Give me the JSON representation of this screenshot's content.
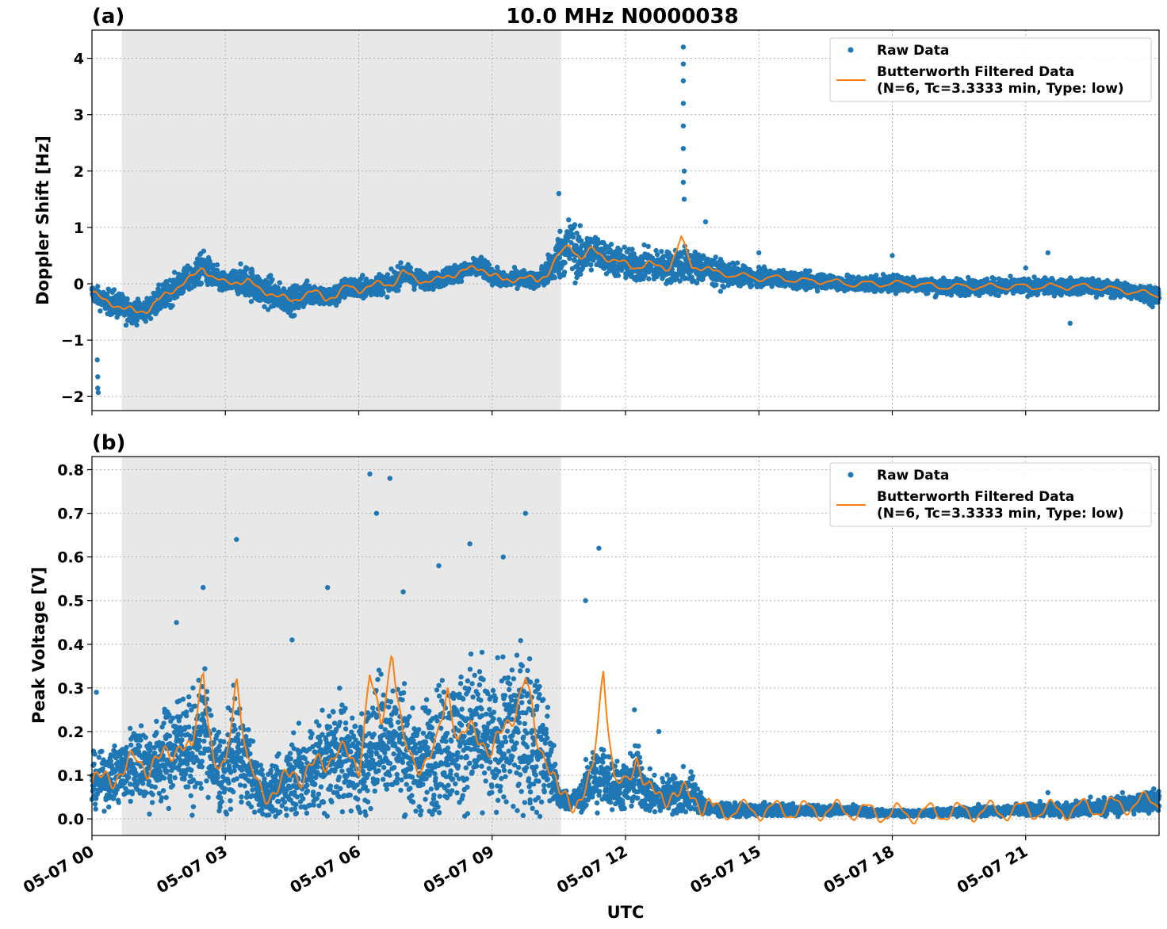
{
  "title": "10.0 MHz N0000038",
  "xlabel": "UTC",
  "x_tick_labels": [
    "05-07 00",
    "05-07 03",
    "05-07 06",
    "05-07 09",
    "05-07 12",
    "05-07 15",
    "05-07 18",
    "05-07 21"
  ],
  "colors": {
    "raw": "#1f77b4",
    "filtered": "#ff7f0e",
    "shade": "#e8e8e8",
    "grid": "#b0b0b0"
  },
  "legend": {
    "raw_label": "Raw Data",
    "filtered_label_line1": "Butterworth Filtered Data",
    "filtered_label_line2": "(N=6, Tc=3.3333 min, Type: low)",
    "placement": "top-right"
  },
  "chart_data": [
    {
      "type": "scatter",
      "panel_label": "(a)",
      "ylabel": "Doppler Shift [Hz]",
      "xlim_hours": [
        0,
        24
      ],
      "ylim": [
        -2.25,
        4.5
      ],
      "y_ticks": [
        -2,
        -1,
        0,
        1,
        2,
        3,
        4
      ],
      "y_tick_labels": [
        "−2",
        "−1",
        "0",
        "1",
        "2",
        "3",
        "4"
      ],
      "grid": true,
      "shaded_interval_hours": [
        0.67,
        10.55
      ],
      "series": [
        {
          "name": "Raw Data",
          "x_hours": [
            0,
            0.25,
            0.5,
            0.75,
            1.0,
            1.25,
            1.5,
            1.75,
            2.0,
            2.25,
            2.5,
            2.75,
            3.0,
            3.25,
            3.5,
            3.75,
            4.0,
            4.25,
            4.5,
            4.75,
            5.0,
            5.25,
            5.5,
            5.75,
            6.0,
            6.25,
            6.5,
            6.75,
            7.0,
            7.25,
            7.5,
            7.75,
            8.0,
            8.25,
            8.5,
            8.75,
            9.0,
            9.25,
            9.5,
            9.75,
            10.0,
            10.25,
            10.5,
            10.75,
            11.0,
            11.25,
            11.5,
            11.75,
            12.0,
            12.25,
            12.5,
            12.75,
            13.0,
            13.25,
            13.5,
            13.75,
            14.0,
            14.5,
            15.0,
            15.5,
            16.0,
            16.5,
            17.0,
            17.5,
            18.0,
            18.5,
            19.0,
            19.5,
            20.0,
            20.5,
            21.0,
            21.5,
            22.0,
            22.5,
            23.0,
            23.5,
            24.0
          ],
          "y": [
            -0.15,
            -0.3,
            -0.35,
            -0.45,
            -0.5,
            -0.45,
            -0.3,
            -0.15,
            0.0,
            0.1,
            0.3,
            0.1,
            0.0,
            0.05,
            0.05,
            -0.1,
            -0.15,
            -0.25,
            -0.3,
            -0.2,
            -0.15,
            -0.25,
            -0.2,
            -0.05,
            -0.1,
            -0.05,
            0.0,
            0.0,
            0.2,
            0.1,
            0.05,
            0.05,
            0.15,
            0.2,
            0.25,
            0.3,
            0.15,
            0.05,
            0.1,
            0.1,
            0.05,
            0.2,
            0.5,
            0.7,
            0.45,
            0.6,
            0.5,
            0.4,
            0.35,
            0.3,
            0.35,
            0.3,
            0.3,
            0.35,
            0.3,
            0.3,
            0.2,
            0.15,
            0.1,
            0.1,
            0.05,
            0.05,
            0.0,
            0.0,
            0.0,
            0.0,
            -0.05,
            -0.05,
            -0.05,
            -0.05,
            -0.05,
            -0.05,
            -0.05,
            -0.05,
            -0.1,
            -0.15,
            -0.2
          ],
          "spread": [
            0.15,
            0.2,
            0.25,
            0.25,
            0.2,
            0.2,
            0.25,
            0.25,
            0.25,
            0.25,
            0.3,
            0.25,
            0.2,
            0.25,
            0.3,
            0.3,
            0.3,
            0.25,
            0.25,
            0.25,
            0.2,
            0.2,
            0.2,
            0.2,
            0.2,
            0.2,
            0.2,
            0.2,
            0.2,
            0.2,
            0.15,
            0.15,
            0.2,
            0.15,
            0.15,
            0.2,
            0.15,
            0.15,
            0.15,
            0.15,
            0.15,
            0.3,
            0.45,
            0.55,
            0.45,
            0.35,
            0.3,
            0.3,
            0.3,
            0.3,
            0.3,
            0.3,
            0.3,
            0.35,
            0.3,
            0.3,
            0.25,
            0.2,
            0.15,
            0.15,
            0.15,
            0.15,
            0.15,
            0.15,
            0.15,
            0.15,
            0.15,
            0.15,
            0.15,
            0.15,
            0.15,
            0.15,
            0.15,
            0.15,
            0.15,
            0.15,
            0.2
          ],
          "outliers": [
            [
              0.12,
              -1.35
            ],
            [
              0.13,
              -1.65
            ],
            [
              0.13,
              -1.85
            ],
            [
              0.14,
              -1.93
            ],
            [
              13.3,
              4.2
            ],
            [
              13.3,
              3.9
            ],
            [
              13.3,
              3.6
            ],
            [
              13.3,
              3.2
            ],
            [
              13.3,
              2.8
            ],
            [
              13.3,
              2.4
            ],
            [
              13.32,
              2.0
            ],
            [
              13.3,
              1.8
            ],
            [
              13.32,
              1.5
            ],
            [
              13.8,
              1.1
            ],
            [
              10.5,
              1.6
            ],
            [
              15.0,
              0.55
            ],
            [
              18.0,
              0.5
            ],
            [
              21.5,
              0.55
            ],
            [
              21.0,
              0.28
            ],
            [
              22.0,
              -0.7
            ]
          ]
        },
        {
          "name": "Butterworth Filtered Data",
          "x_hours": [
            0,
            0.25,
            0.5,
            0.75,
            1.0,
            1.25,
            1.5,
            1.75,
            2.0,
            2.25,
            2.5,
            2.75,
            3.0,
            3.25,
            3.5,
            3.75,
            4.0,
            4.25,
            4.5,
            4.75,
            5.0,
            5.25,
            5.5,
            5.75,
            6.0,
            6.25,
            6.5,
            6.75,
            7.0,
            7.25,
            7.5,
            7.75,
            8.0,
            8.25,
            8.5,
            8.75,
            9.0,
            9.25,
            9.5,
            9.75,
            10.0,
            10.25,
            10.5,
            10.75,
            11.0,
            11.25,
            11.5,
            11.75,
            12.0,
            12.25,
            12.5,
            12.75,
            13.0,
            13.25,
            13.5,
            13.75,
            14.0,
            14.5,
            15.0,
            15.5,
            16.0,
            16.5,
            17.0,
            17.5,
            18.0,
            18.5,
            19.0,
            19.5,
            20.0,
            20.5,
            21.0,
            21.5,
            22.0,
            22.5,
            23.0,
            23.5,
            24.0
          ],
          "y": [
            -0.15,
            -0.3,
            -0.35,
            -0.45,
            -0.5,
            -0.45,
            -0.3,
            -0.15,
            0.0,
            0.1,
            0.3,
            0.1,
            0.0,
            0.05,
            0.05,
            -0.1,
            -0.15,
            -0.25,
            -0.3,
            -0.2,
            -0.15,
            -0.25,
            -0.2,
            -0.05,
            -0.1,
            -0.05,
            0.0,
            0.0,
            0.2,
            0.1,
            0.05,
            0.05,
            0.15,
            0.2,
            0.25,
            0.3,
            0.15,
            0.05,
            0.1,
            0.1,
            0.05,
            0.2,
            0.5,
            0.7,
            0.45,
            0.6,
            0.5,
            0.4,
            0.35,
            0.3,
            0.35,
            0.3,
            0.3,
            0.8,
            0.3,
            0.3,
            0.2,
            0.15,
            0.1,
            0.1,
            0.05,
            0.05,
            0.0,
            0.0,
            0.0,
            0.0,
            -0.05,
            -0.05,
            -0.05,
            -0.05,
            -0.05,
            -0.05,
            -0.05,
            -0.05,
            -0.1,
            -0.15,
            -0.2
          ]
        }
      ]
    },
    {
      "type": "scatter",
      "panel_label": "(b)",
      "ylabel": "Peak Voltage [V]",
      "xlim_hours": [
        0,
        24
      ],
      "ylim": [
        -0.038,
        0.83
      ],
      "y_ticks": [
        0.0,
        0.1,
        0.2,
        0.3,
        0.4,
        0.5,
        0.6,
        0.7,
        0.8
      ],
      "y_tick_labels": [
        "0.0",
        "0.1",
        "0.2",
        "0.3",
        "0.4",
        "0.5",
        "0.6",
        "0.7",
        "0.8"
      ],
      "grid": true,
      "shaded_interval_hours": [
        0.67,
        10.55
      ],
      "series": [
        {
          "name": "Raw Data",
          "x_hours": [
            0,
            0.25,
            0.5,
            0.75,
            1.0,
            1.25,
            1.5,
            1.75,
            2.0,
            2.25,
            2.5,
            2.75,
            3.0,
            3.25,
            3.5,
            3.75,
            4.0,
            4.25,
            4.5,
            4.75,
            5.0,
            5.25,
            5.5,
            5.75,
            6.0,
            6.25,
            6.5,
            6.75,
            7.0,
            7.25,
            7.5,
            7.75,
            8.0,
            8.25,
            8.5,
            8.75,
            9.0,
            9.25,
            9.5,
            9.75,
            10.0,
            10.25,
            10.5,
            10.75,
            11.0,
            11.25,
            11.5,
            11.75,
            12.0,
            12.25,
            12.5,
            12.75,
            13.0,
            13.25,
            13.5,
            13.75,
            14.0,
            14.5,
            15.0,
            15.5,
            16.0,
            16.5,
            17.0,
            17.5,
            18.0,
            18.5,
            19.0,
            19.5,
            20.0,
            20.5,
            21.0,
            21.5,
            22.0,
            22.5,
            23.0,
            23.5,
            24.0
          ],
          "y": [
            0.08,
            0.09,
            0.1,
            0.11,
            0.14,
            0.12,
            0.13,
            0.15,
            0.18,
            0.14,
            0.22,
            0.12,
            0.1,
            0.17,
            0.12,
            0.07,
            0.06,
            0.07,
            0.11,
            0.1,
            0.12,
            0.13,
            0.16,
            0.14,
            0.12,
            0.15,
            0.2,
            0.18,
            0.17,
            0.12,
            0.14,
            0.16,
            0.18,
            0.18,
            0.2,
            0.19,
            0.15,
            0.2,
            0.2,
            0.2,
            0.18,
            0.14,
            0.05,
            0.04,
            0.05,
            0.09,
            0.1,
            0.08,
            0.07,
            0.1,
            0.06,
            0.05,
            0.06,
            0.05,
            0.06,
            0.03,
            0.02,
            0.02,
            0.02,
            0.02,
            0.02,
            0.02,
            0.02,
            0.015,
            0.012,
            0.013,
            0.015,
            0.016,
            0.018,
            0.018,
            0.02,
            0.02,
            0.022,
            0.025,
            0.03,
            0.035,
            0.045
          ],
          "spread": [
            0.06,
            0.06,
            0.07,
            0.08,
            0.1,
            0.1,
            0.1,
            0.12,
            0.12,
            0.12,
            0.16,
            0.1,
            0.1,
            0.12,
            0.1,
            0.07,
            0.06,
            0.07,
            0.09,
            0.1,
            0.12,
            0.12,
            0.14,
            0.12,
            0.12,
            0.13,
            0.16,
            0.15,
            0.15,
            0.12,
            0.13,
            0.15,
            0.16,
            0.16,
            0.18,
            0.18,
            0.15,
            0.18,
            0.2,
            0.2,
            0.18,
            0.14,
            0.03,
            0.02,
            0.03,
            0.09,
            0.08,
            0.06,
            0.06,
            0.08,
            0.05,
            0.04,
            0.05,
            0.04,
            0.05,
            0.02,
            0.015,
            0.015,
            0.015,
            0.015,
            0.012,
            0.012,
            0.012,
            0.01,
            0.008,
            0.008,
            0.01,
            0.01,
            0.012,
            0.012,
            0.015,
            0.015,
            0.017,
            0.02,
            0.022,
            0.025,
            0.03
          ],
          "outliers": [
            [
              0.1,
              0.29
            ],
            [
              2.5,
              0.53
            ],
            [
              3.25,
              0.64
            ],
            [
              6.25,
              0.79
            ],
            [
              6.7,
              0.78
            ],
            [
              6.4,
              0.7
            ],
            [
              7.0,
              0.52
            ],
            [
              7.8,
              0.58
            ],
            [
              8.5,
              0.63
            ],
            [
              9.25,
              0.6
            ],
            [
              9.75,
              0.7
            ],
            [
              11.4,
              0.62
            ],
            [
              11.1,
              0.5
            ],
            [
              5.3,
              0.53
            ],
            [
              4.5,
              0.41
            ],
            [
              1.9,
              0.45
            ],
            [
              12.2,
              0.25
            ],
            [
              12.75,
              0.2
            ],
            [
              13.3,
              0.12
            ],
            [
              21.5,
              0.06
            ]
          ]
        },
        {
          "name": "Butterworth Filtered Data",
          "x_hours": [
            0,
            0.25,
            0.5,
            0.75,
            1.0,
            1.25,
            1.5,
            1.75,
            2.0,
            2.25,
            2.5,
            2.75,
            3.0,
            3.25,
            3.5,
            3.75,
            4.0,
            4.25,
            4.5,
            4.75,
            5.0,
            5.25,
            5.5,
            5.75,
            6.0,
            6.25,
            6.5,
            6.75,
            7.0,
            7.25,
            7.5,
            7.75,
            8.0,
            8.25,
            8.5,
            8.75,
            9.0,
            9.25,
            9.5,
            9.75,
            10.0,
            10.25,
            10.5,
            10.75,
            11.0,
            11.25,
            11.5,
            11.75,
            12.0,
            12.25,
            12.5,
            12.75,
            13.0,
            13.25,
            13.5,
            13.75,
            14.0,
            14.5,
            15.0,
            15.5,
            16.0,
            16.5,
            17.0,
            17.5,
            18.0,
            18.5,
            19.0,
            19.5,
            20.0,
            20.5,
            21.0,
            21.5,
            22.0,
            22.5,
            23.0,
            23.5,
            24.0
          ],
          "y": [
            0.08,
            0.09,
            0.1,
            0.11,
            0.14,
            0.12,
            0.13,
            0.15,
            0.18,
            0.14,
            0.35,
            0.12,
            0.1,
            0.34,
            0.12,
            0.07,
            0.06,
            0.07,
            0.11,
            0.1,
            0.12,
            0.13,
            0.16,
            0.14,
            0.12,
            0.33,
            0.2,
            0.4,
            0.17,
            0.12,
            0.14,
            0.16,
            0.3,
            0.18,
            0.2,
            0.19,
            0.15,
            0.2,
            0.25,
            0.32,
            0.18,
            0.14,
            0.05,
            0.04,
            0.05,
            0.09,
            0.35,
            0.08,
            0.07,
            0.15,
            0.06,
            0.05,
            0.06,
            0.05,
            0.06,
            0.03,
            0.02,
            0.02,
            0.02,
            0.02,
            0.02,
            0.02,
            0.02,
            0.015,
            0.012,
            0.013,
            0.015,
            0.016,
            0.018,
            0.018,
            0.02,
            0.02,
            0.022,
            0.025,
            0.03,
            0.035,
            0.045
          ]
        }
      ]
    }
  ]
}
